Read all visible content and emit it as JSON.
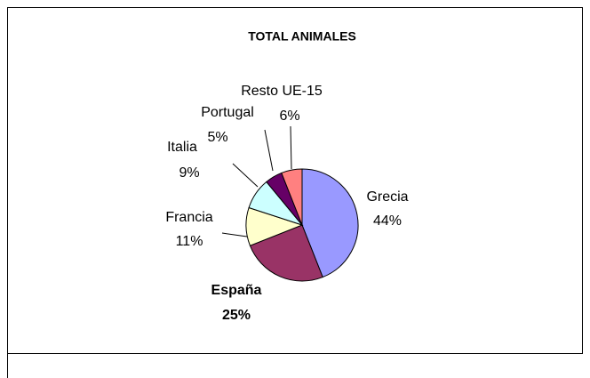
{
  "chart_data": {
    "type": "pie",
    "title": "TOTAL ANIMALES",
    "categories": [
      "Grecia",
      "España",
      "Francia",
      "Italia",
      "Portugal",
      "Resto UE-15"
    ],
    "values": [
      44,
      25,
      11,
      9,
      5,
      6
    ],
    "value_labels": [
      "44%",
      "25%",
      "11%",
      "9%",
      "5%",
      "6%"
    ],
    "colors": [
      "#9999ff",
      "#993366",
      "#ffffcc",
      "#ccffff",
      "#660066",
      "#ff8080"
    ]
  }
}
